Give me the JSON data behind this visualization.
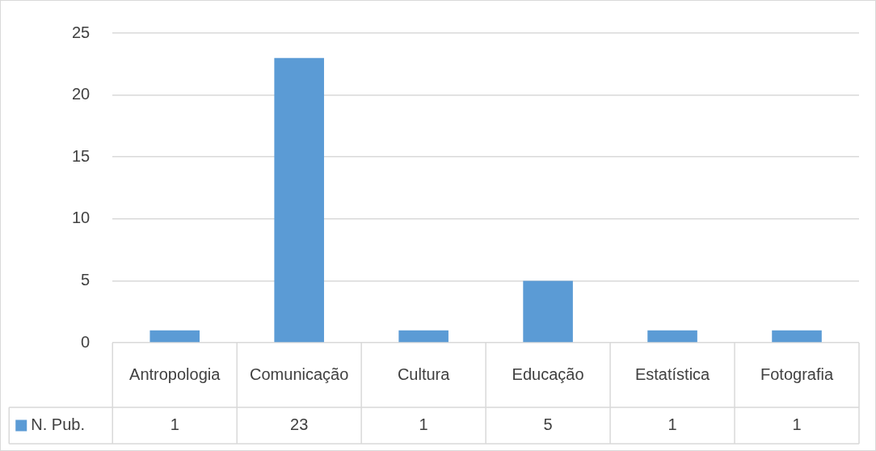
{
  "chart_data": {
    "type": "bar",
    "categories": [
      "Antropologia",
      "Comunicação",
      "Cultura",
      "Educação",
      "Estatística",
      "Fotografia"
    ],
    "series": [
      {
        "name": "N. Pub.",
        "color": "#5b9bd5",
        "values": [
          1,
          23,
          1,
          5,
          1,
          1
        ]
      }
    ],
    "ylim": [
      0,
      25
    ],
    "yticks": [
      0,
      5,
      10,
      15,
      20,
      25
    ],
    "grid": "y",
    "legend": "bottom",
    "data_labels": true
  }
}
